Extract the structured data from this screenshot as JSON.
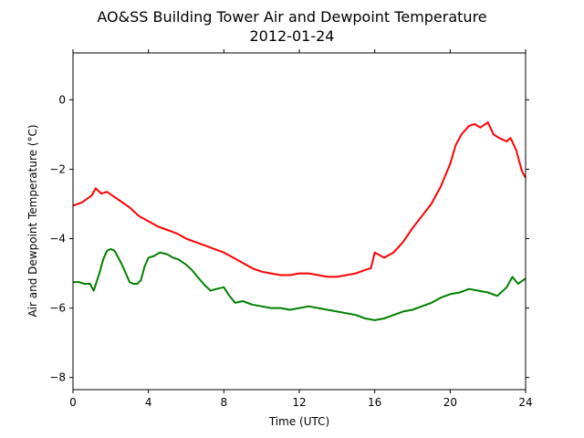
{
  "chart_data": {
    "type": "line",
    "title": "AO&SS Building Tower Air and Dewpoint Temperature",
    "subtitle": "2012-01-24",
    "xlabel": "Time (UTC)",
    "ylabel": "Air and Dewpoint Temperature (°C)",
    "xlim": [
      0,
      24
    ],
    "ylim": [
      -8.35,
      1.35
    ],
    "xticks": [
      0,
      4,
      8,
      12,
      16,
      20,
      24
    ],
    "xtick_labels": [
      "0",
      "4",
      "8",
      "12",
      "16",
      "20",
      "24"
    ],
    "yticks": [
      0,
      -2,
      -4,
      -6,
      -8
    ],
    "ytick_labels": [
      "0",
      "−2",
      "−4",
      "−6",
      "−8"
    ],
    "grid": false,
    "series": [
      {
        "color": "#ff0000",
        "x": [
          0,
          0.5,
          1.0,
          1.2,
          1.5,
          1.8,
          2.2,
          2.6,
          3.0,
          3.5,
          4.0,
          4.5,
          5.0,
          5.5,
          6.0,
          6.5,
          7.0,
          7.5,
          8.0,
          8.5,
          9.0,
          9.5,
          10.0,
          10.5,
          11.0,
          11.5,
          12.0,
          12.5,
          13.0,
          13.5,
          14.0,
          14.5,
          15.0,
          15.5,
          15.8,
          16.0,
          16.5,
          17.0,
          17.5,
          18.0,
          18.5,
          19.0,
          19.5,
          20.0,
          20.3,
          20.6,
          21.0,
          21.3,
          21.6,
          22.0,
          22.3,
          22.6,
          23.0,
          23.2,
          23.5,
          23.8,
          24.0
        ],
        "y": [
          -3.05,
          -2.95,
          -2.75,
          -2.55,
          -2.7,
          -2.65,
          -2.8,
          -2.95,
          -3.1,
          -3.35,
          -3.5,
          -3.65,
          -3.75,
          -3.85,
          -4.0,
          -4.1,
          -4.2,
          -4.3,
          -4.4,
          -4.55,
          -4.7,
          -4.85,
          -4.95,
          -5.0,
          -5.05,
          -5.05,
          -5.0,
          -5.0,
          -5.05,
          -5.1,
          -5.1,
          -5.05,
          -5.0,
          -4.9,
          -4.85,
          -4.4,
          -4.55,
          -4.4,
          -4.1,
          -3.7,
          -3.35,
          -3.0,
          -2.5,
          -1.85,
          -1.3,
          -1.0,
          -0.75,
          -0.7,
          -0.8,
          -0.65,
          -1.0,
          -1.1,
          -1.2,
          -1.1,
          -1.45,
          -2.05,
          -2.25
        ]
      },
      {
        "color": "#008000",
        "x": [
          0,
          0.3,
          0.6,
          0.9,
          1.1,
          1.25,
          1.4,
          1.6,
          1.8,
          2.0,
          2.2,
          2.4,
          2.6,
          2.8,
          3.0,
          3.2,
          3.4,
          3.6,
          3.8,
          4.0,
          4.3,
          4.6,
          5.0,
          5.3,
          5.6,
          6.0,
          6.3,
          6.6,
          7.0,
          7.3,
          7.6,
          8.0,
          8.3,
          8.6,
          9.0,
          9.5,
          10.0,
          10.5,
          11.0,
          11.5,
          12.0,
          12.5,
          13.0,
          13.5,
          14.0,
          14.5,
          15.0,
          15.5,
          16.0,
          16.5,
          17.0,
          17.5,
          18.0,
          18.5,
          19.0,
          19.5,
          20.0,
          20.5,
          21.0,
          21.5,
          22.0,
          22.5,
          23.0,
          23.3,
          23.6,
          24.0
        ],
        "y": [
          -5.25,
          -5.25,
          -5.3,
          -5.3,
          -5.5,
          -5.25,
          -5.0,
          -4.6,
          -4.35,
          -4.3,
          -4.35,
          -4.55,
          -4.75,
          -5.0,
          -5.25,
          -5.3,
          -5.3,
          -5.2,
          -4.8,
          -4.55,
          -4.5,
          -4.4,
          -4.45,
          -4.55,
          -4.6,
          -4.75,
          -4.9,
          -5.1,
          -5.35,
          -5.5,
          -5.45,
          -5.4,
          -5.65,
          -5.85,
          -5.8,
          -5.9,
          -5.95,
          -6.0,
          -6.0,
          -6.05,
          -6.0,
          -5.95,
          -6.0,
          -6.05,
          -6.1,
          -6.15,
          -6.2,
          -6.3,
          -6.35,
          -6.3,
          -6.2,
          -6.1,
          -6.05,
          -5.95,
          -5.85,
          -5.7,
          -5.6,
          -5.55,
          -5.45,
          -5.5,
          -5.55,
          -5.65,
          -5.4,
          -5.1,
          -5.3,
          -5.15
        ]
      }
    ]
  }
}
